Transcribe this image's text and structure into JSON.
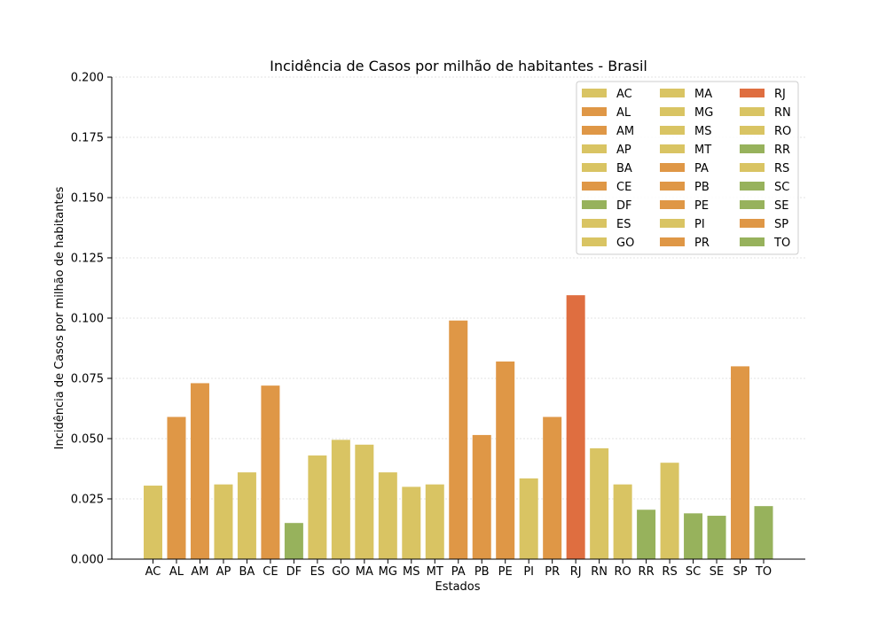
{
  "chart_data": {
    "type": "bar",
    "title": "Incidência de Casos por milhão de habitantes - Brasil",
    "xlabel": "Estados",
    "ylabel": "Incidência de Casos por milhão de habitantes",
    "ylim": [
      0,
      0.2
    ],
    "yticks": [
      "0.000",
      "0.025",
      "0.050",
      "0.075",
      "0.100",
      "0.125",
      "0.150",
      "0.175",
      "0.200"
    ],
    "grid": "horizontal dotted",
    "legend_position": "top-right",
    "colors": {
      "yellow": "#d9c463",
      "orange": "#df9746",
      "green": "#97b25c",
      "red": "#df6e40"
    },
    "categories": [
      "AC",
      "AL",
      "AM",
      "AP",
      "BA",
      "CE",
      "DF",
      "ES",
      "GO",
      "MA",
      "MG",
      "MS",
      "MT",
      "PA",
      "PB",
      "PE",
      "PI",
      "PR",
      "RJ",
      "RN",
      "RO",
      "RR",
      "RS",
      "SC",
      "SE",
      "SP",
      "TO"
    ],
    "values": [
      0.0305,
      0.059,
      0.073,
      0.031,
      0.036,
      0.072,
      0.015,
      0.043,
      0.0495,
      0.0475,
      0.036,
      0.03,
      0.031,
      0.099,
      0.0515,
      0.082,
      0.0335,
      0.059,
      0.1095,
      0.046,
      0.031,
      0.0205,
      0.04,
      0.019,
      0.018,
      0.08,
      0.022
    ],
    "bar_colors": [
      "yellow",
      "orange",
      "orange",
      "yellow",
      "yellow",
      "orange",
      "green",
      "yellow",
      "yellow",
      "yellow",
      "yellow",
      "yellow",
      "yellow",
      "orange",
      "orange",
      "orange",
      "yellow",
      "orange",
      "red",
      "yellow",
      "yellow",
      "green",
      "yellow",
      "green",
      "green",
      "orange",
      "green"
    ],
    "legend_entries": [
      "AC",
      "AL",
      "AM",
      "AP",
      "BA",
      "CE",
      "DF",
      "ES",
      "GO",
      "MA",
      "MG",
      "MS",
      "MT",
      "PA",
      "PB",
      "PE",
      "PI",
      "PR",
      "RJ",
      "RN",
      "RO",
      "RR",
      "RS",
      "SC",
      "SE",
      "SP",
      "TO"
    ]
  }
}
